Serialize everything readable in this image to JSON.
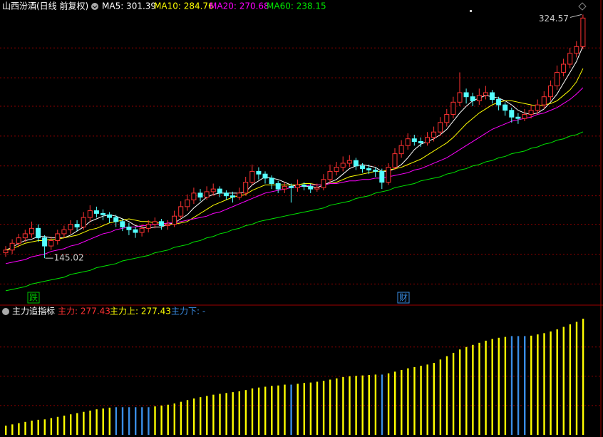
{
  "chart_data": [
    {
      "type": "candlestick",
      "title": "山西汾酒(日线 前复权)",
      "candles": [
        [
          149,
          154,
          146,
          151
        ],
        [
          151,
          159,
          148,
          156
        ],
        [
          156,
          163,
          153,
          160
        ],
        [
          160,
          166,
          157,
          163
        ],
        [
          163,
          172,
          160,
          167
        ],
        [
          167,
          170,
          157,
          160
        ],
        [
          160,
          162,
          145.02,
          154
        ],
        [
          154,
          161,
          151,
          158
        ],
        [
          158,
          166,
          155,
          163
        ],
        [
          163,
          169,
          160,
          166
        ],
        [
          166,
          173,
          163,
          170
        ],
        [
          170,
          173,
          165,
          168
        ],
        [
          168,
          179,
          166,
          175
        ],
        [
          175,
          184,
          172,
          180
        ],
        [
          180,
          183,
          175,
          178
        ],
        [
          178,
          181,
          173,
          177
        ],
        [
          177,
          179,
          171,
          175
        ],
        [
          175,
          177,
          168,
          172
        ],
        [
          172,
          174,
          165,
          168
        ],
        [
          168,
          171,
          162,
          166
        ],
        [
          166,
          168,
          160,
          164
        ],
        [
          164,
          170,
          161,
          167
        ],
        [
          167,
          173,
          164,
          170
        ],
        [
          170,
          175,
          167,
          172
        ],
        [
          172,
          174,
          166,
          169
        ],
        [
          169,
          173,
          166,
          170
        ],
        [
          170,
          180,
          168,
          176
        ],
        [
          176,
          187,
          174,
          183
        ],
        [
          183,
          192,
          180,
          188
        ],
        [
          188,
          197,
          185,
          193
        ],
        [
          193,
          196,
          187,
          190
        ],
        [
          190,
          198,
          188,
          194
        ],
        [
          194,
          200,
          191,
          196
        ],
        [
          196,
          198,
          190,
          193
        ],
        [
          193,
          195,
          188,
          191
        ],
        [
          191,
          194,
          186,
          190
        ],
        [
          190,
          197,
          188,
          193
        ],
        [
          193,
          205,
          191,
          201
        ],
        [
          201,
          214,
          199,
          209
        ],
        [
          209,
          212,
          203,
          207
        ],
        [
          207,
          209,
          200,
          204
        ],
        [
          204,
          206,
          196,
          200
        ],
        [
          200,
          202,
          193,
          196
        ],
        [
          196,
          201,
          193,
          198
        ],
        [
          198,
          200,
          186,
          197
        ],
        [
          197,
          203,
          194,
          199
        ],
        [
          199,
          201,
          195,
          198
        ],
        [
          198,
          200,
          193,
          196
        ],
        [
          196,
          200,
          194,
          197
        ],
        [
          197,
          207,
          195,
          203
        ],
        [
          203,
          214,
          200,
          209
        ],
        [
          209,
          216,
          206,
          212
        ],
        [
          212,
          220,
          209,
          215
        ],
        [
          215,
          221,
          212,
          217
        ],
        [
          217,
          219,
          210,
          213
        ],
        [
          213,
          215,
          208,
          211
        ],
        [
          211,
          214,
          207,
          210
        ],
        [
          210,
          212,
          205,
          209
        ],
        [
          209,
          211,
          196,
          201
        ],
        [
          201,
          215,
          199,
          212
        ],
        [
          212,
          226,
          210,
          222
        ],
        [
          222,
          232,
          219,
          228
        ],
        [
          228,
          237,
          225,
          233
        ],
        [
          233,
          236,
          228,
          231
        ],
        [
          231,
          234,
          227,
          230
        ],
        [
          230,
          238,
          228,
          234
        ],
        [
          234,
          242,
          231,
          238
        ],
        [
          238,
          249,
          235,
          245
        ],
        [
          245,
          255,
          242,
          251
        ],
        [
          251,
          264,
          248,
          260
        ],
        [
          260,
          282,
          257,
          267
        ],
        [
          267,
          270,
          259,
          264
        ],
        [
          264,
          267,
          257,
          261
        ],
        [
          261,
          270,
          258,
          265
        ],
        [
          265,
          272,
          262,
          267
        ],
        [
          267,
          269,
          259,
          262
        ],
        [
          262,
          264,
          254,
          258
        ],
        [
          258,
          260,
          250,
          254
        ],
        [
          254,
          256,
          245,
          249
        ],
        [
          249,
          252,
          244,
          248
        ],
        [
          248,
          255,
          246,
          251
        ],
        [
          251,
          258,
          248,
          254
        ],
        [
          254,
          262,
          251,
          258
        ],
        [
          258,
          268,
          255,
          264
        ],
        [
          264,
          276,
          261,
          272
        ],
        [
          272,
          287,
          269,
          282
        ],
        [
          282,
          292,
          279,
          288
        ],
        [
          288,
          300,
          285,
          296
        ],
        [
          296,
          305,
          293,
          301
        ],
        [
          301,
          324.57,
          299,
          322
        ]
      ],
      "up_color": "#ff3232",
      "down_color": "#54ffff",
      "series": [
        {
          "legend": "MA5: 301.39",
          "color": "#ffffff",
          "values": [
            151,
            153,
            156,
            158,
            159,
            161,
            161,
            160,
            160,
            160,
            162,
            165,
            168,
            172,
            174,
            176,
            177,
            176,
            174,
            172,
            169,
            168,
            167,
            168,
            168,
            170,
            171,
            174,
            177,
            182,
            186,
            190,
            192,
            193,
            193,
            193,
            193,
            194,
            199,
            202,
            205,
            204,
            203,
            201,
            199,
            198,
            198,
            198,
            197,
            199,
            201,
            203,
            207,
            211,
            213,
            214,
            213,
            212,
            209,
            209,
            211,
            214,
            219,
            225,
            229,
            231,
            233,
            236,
            240,
            246,
            252,
            257,
            261,
            263,
            265,
            264,
            263,
            261,
            258,
            254,
            252,
            251,
            252,
            255,
            260,
            266,
            274,
            282,
            290,
            301.39
          ]
        },
        {
          "legend": "MA10: 284.76",
          "color": "#ffff00",
          "values": [
            151,
            152,
            154,
            156,
            157,
            158,
            158,
            159,
            159,
            160,
            161,
            162,
            164,
            166,
            167,
            169,
            171,
            172,
            173,
            174,
            173,
            172,
            172,
            171,
            171,
            170,
            170,
            171,
            172,
            175,
            178,
            181,
            184,
            186,
            188,
            190,
            191,
            192,
            195,
            197,
            199,
            199,
            199,
            199,
            199,
            199,
            200,
            200,
            199,
            199,
            200,
            201,
            203,
            205,
            206,
            207,
            208,
            209,
            209,
            210,
            211,
            212,
            214,
            216,
            218,
            221,
            224,
            227,
            230,
            234,
            239,
            244,
            248,
            252,
            255,
            258,
            260,
            261,
            261,
            260,
            259,
            258,
            257,
            258,
            259,
            261,
            265,
            269,
            275,
            284.76
          ]
        },
        {
          "legend": "MA20: 270.68",
          "color": "#ff00ff",
          "values": [
            141,
            142,
            143,
            144,
            146,
            147,
            148,
            150,
            151,
            152,
            154,
            155,
            157,
            159,
            161,
            163,
            164,
            166,
            167,
            168,
            168,
            169,
            169,
            170,
            170,
            171,
            171,
            172,
            173,
            174,
            175,
            176,
            178,
            179,
            181,
            183,
            185,
            187,
            189,
            191,
            193,
            194,
            195,
            196,
            197,
            198,
            198,
            199,
            199,
            199,
            200,
            200,
            201,
            202,
            202,
            203,
            203,
            204,
            204,
            205,
            206,
            207,
            208,
            210,
            211,
            213,
            215,
            217,
            219,
            222,
            225,
            228,
            231,
            234,
            237,
            240,
            242,
            244,
            246,
            247,
            248,
            249,
            251,
            252,
            254,
            256,
            259,
            262,
            266,
            270.68
          ]
        },
        {
          "legend": "MA60: 238.15",
          "color": "#00e600",
          "values": [
            121,
            122,
            123,
            124,
            126,
            127,
            128,
            129,
            130,
            131,
            133,
            134,
            135,
            136,
            138,
            139,
            140,
            141,
            143,
            144,
            145,
            146,
            147,
            149,
            150,
            151,
            153,
            154,
            155,
            157,
            158,
            160,
            161,
            163,
            164,
            166,
            167,
            169,
            170,
            172,
            173,
            174,
            175,
            176,
            177,
            178,
            179,
            180,
            181,
            182,
            184,
            185,
            186,
            187,
            189,
            190,
            191,
            193,
            194,
            195,
            197,
            198,
            199,
            200,
            202,
            203,
            204,
            205,
            207,
            208,
            210,
            211,
            213,
            214,
            216,
            217,
            219,
            220,
            222,
            223,
            224,
            226,
            227,
            229,
            230,
            232,
            233,
            235,
            236,
            238.15
          ]
        }
      ],
      "annotations": [
        324.57,
        145.02
      ],
      "markers": [
        {
          "text": "跌",
          "color": "#00c000"
        },
        {
          "text": "财",
          "color": "#3a8ee6"
        }
      ],
      "ylim": [
        112,
        329
      ],
      "yticks": [
        126,
        148,
        170,
        191,
        213,
        235,
        257,
        278,
        300
      ],
      "grid": true
    },
    {
      "type": "bar",
      "title": "主力追指标",
      "legend_items": [
        {
          "label": "主力: 277.43",
          "color": "#ff3232"
        }
      ],
      "series": [
        {
          "legend": "主力上: 277.43",
          "color": "#ffff00",
          "values": [
            22,
            25,
            28,
            31,
            34,
            36,
            37,
            40,
            43,
            46,
            49,
            52,
            55,
            58,
            61,
            63,
            65,
            null,
            null,
            null,
            null,
            null,
            null,
            68,
            70,
            72,
            75,
            79,
            83,
            87,
            90,
            93,
            96,
            98,
            100,
            102,
            104,
            107,
            111,
            113,
            115,
            117,
            118,
            120,
            null,
            122,
            124,
            125,
            127,
            129,
            132,
            135,
            138,
            140,
            141,
            142,
            143,
            144,
            null,
            147,
            151,
            155,
            159,
            162,
            165,
            168,
            172,
            180,
            188,
            196,
            204,
            210,
            215,
            220,
            225,
            229,
            232,
            234,
            null,
            null,
            null,
            237,
            240,
            243,
            247,
            252,
            258,
            264,
            270,
            277.43
          ]
        },
        {
          "legend": "主力下: -",
          "color": "#3a8ee6",
          "values": [
            null,
            null,
            null,
            null,
            null,
            null,
            null,
            null,
            null,
            null,
            null,
            null,
            null,
            null,
            null,
            null,
            null,
            66,
            66,
            66,
            66,
            66,
            66,
            null,
            null,
            null,
            null,
            null,
            null,
            null,
            null,
            null,
            null,
            null,
            null,
            null,
            null,
            null,
            null,
            null,
            null,
            null,
            null,
            null,
            120,
            null,
            null,
            null,
            null,
            null,
            null,
            null,
            null,
            null,
            null,
            null,
            null,
            null,
            144,
            null,
            null,
            null,
            null,
            null,
            null,
            null,
            null,
            null,
            null,
            null,
            null,
            null,
            null,
            null,
            null,
            null,
            null,
            null,
            236,
            236,
            236,
            null,
            null,
            null,
            null,
            null,
            null,
            null,
            null,
            null
          ]
        }
      ],
      "ylim": [
        0,
        310
      ],
      "yticks": [
        70,
        140,
        210
      ],
      "grid": true
    }
  ]
}
